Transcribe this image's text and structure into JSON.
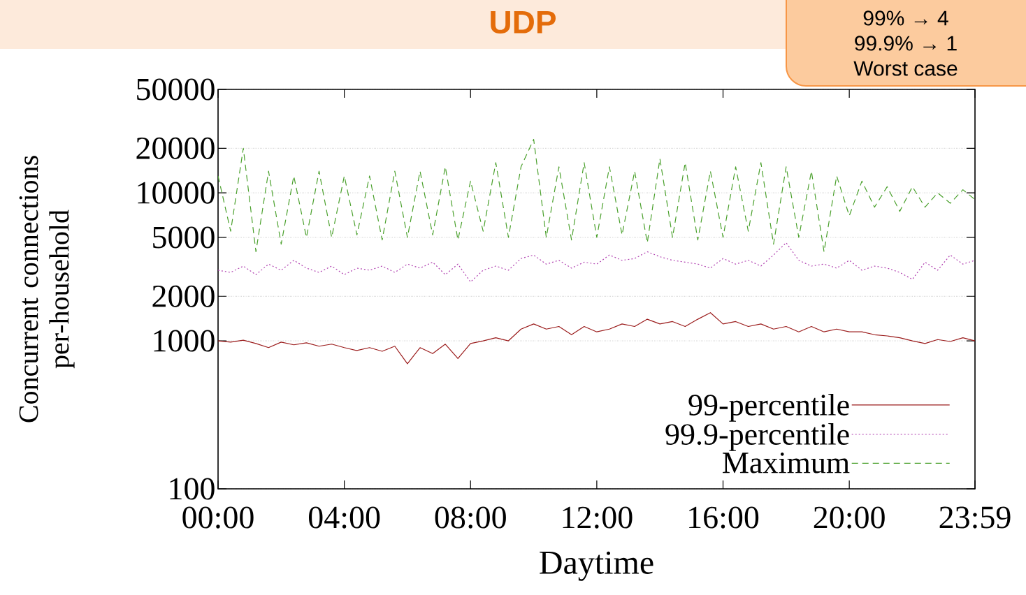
{
  "chart_data": {
    "type": "line",
    "title": "UDP",
    "xlabel": "Daytime",
    "ylabel": "Concurrent connections per-household",
    "annotations": [
      "99% → 4",
      "99.9% → 1",
      "Worst case"
    ],
    "x": [
      0,
      0.4,
      0.8,
      1.2,
      1.6,
      2.0,
      2.4,
      2.8,
      3.2,
      3.6,
      4.0,
      4.4,
      4.8,
      5.2,
      5.6,
      6.0,
      6.4,
      6.8,
      7.2,
      7.6,
      8.0,
      8.4,
      8.8,
      9.2,
      9.6,
      10.0,
      10.4,
      10.8,
      11.2,
      11.6,
      12.0,
      12.4,
      12.8,
      13.2,
      13.6,
      14.0,
      14.4,
      14.8,
      15.2,
      15.6,
      16.0,
      16.4,
      16.8,
      17.2,
      17.6,
      18.0,
      18.4,
      18.8,
      19.2,
      19.6,
      20.0,
      20.4,
      20.8,
      21.2,
      21.6,
      22.0,
      22.4,
      22.8,
      23.2,
      23.6,
      23.983
    ],
    "series": [
      {
        "name": "99-percentile",
        "color": "#9b1c1c",
        "line_style": "solid",
        "values": [
          1000,
          980,
          1010,
          960,
          900,
          980,
          940,
          970,
          920,
          950,
          900,
          860,
          900,
          850,
          920,
          700,
          900,
          820,
          950,
          760,
          960,
          1000,
          1050,
          1000,
          1200,
          1300,
          1200,
          1250,
          1100,
          1250,
          1150,
          1200,
          1300,
          1250,
          1400,
          1300,
          1350,
          1250,
          1400,
          1550,
          1300,
          1350,
          1250,
          1300,
          1200,
          1250,
          1150,
          1250,
          1150,
          1200,
          1150,
          1150,
          1100,
          1080,
          1050,
          1000,
          960,
          1020,
          990,
          1050,
          1000
        ]
      },
      {
        "name": "99.9-percentile",
        "color": "#b040b0",
        "line_style": "dotted",
        "values": [
          3000,
          2900,
          3200,
          2800,
          3300,
          3000,
          3500,
          3100,
          2900,
          3200,
          2800,
          3100,
          3000,
          3200,
          2900,
          3300,
          3100,
          3400,
          2800,
          3300,
          2500,
          3000,
          3200,
          3000,
          3600,
          3800,
          3300,
          3500,
          3100,
          3400,
          3300,
          3800,
          3500,
          3600,
          4000,
          3700,
          3500,
          3400,
          3300,
          3100,
          3600,
          3300,
          3500,
          3200,
          3800,
          4600,
          3500,
          3200,
          3300,
          3100,
          3500,
          3000,
          3200,
          3100,
          2900,
          2600,
          3400,
          3000,
          3800,
          3300,
          3500
        ]
      },
      {
        "name": "Maximum",
        "color": "#4aa02c",
        "line_style": "dashed",
        "values": [
          13000,
          5500,
          20000,
          4000,
          14000,
          4500,
          13000,
          5000,
          14000,
          5000,
          13000,
          5200,
          13000,
          4800,
          14000,
          5000,
          14000,
          5200,
          15000,
          4800,
          12000,
          5500,
          16000,
          5000,
          15000,
          23000,
          5000,
          15000,
          4800,
          16000,
          5000,
          15000,
          5200,
          14000,
          4600,
          17000,
          5000,
          16000,
          4800,
          14000,
          5000,
          15000,
          5500,
          16000,
          4500,
          15000,
          5000,
          14000,
          4000,
          13000,
          7000,
          12000,
          8000,
          11000,
          7500,
          11000,
          8000,
          10000,
          8500,
          10500,
          9000
        ]
      }
    ],
    "log": "y",
    "xlim": [
      0,
      23.983
    ],
    "ylim": [
      100,
      50000
    ],
    "xticks": [
      {
        "value": 0,
        "label": "00:00"
      },
      {
        "value": 4,
        "label": "04:00"
      },
      {
        "value": 8,
        "label": "08:00"
      },
      {
        "value": 12,
        "label": "12:00"
      },
      {
        "value": 16,
        "label": "16:00"
      },
      {
        "value": 20,
        "label": "20:00"
      },
      {
        "value": 23.983,
        "label": "23:59"
      }
    ],
    "yticks": [
      100,
      1000,
      2000,
      5000,
      10000,
      20000,
      50000
    ],
    "grid": "y",
    "legend": "bottom right"
  }
}
